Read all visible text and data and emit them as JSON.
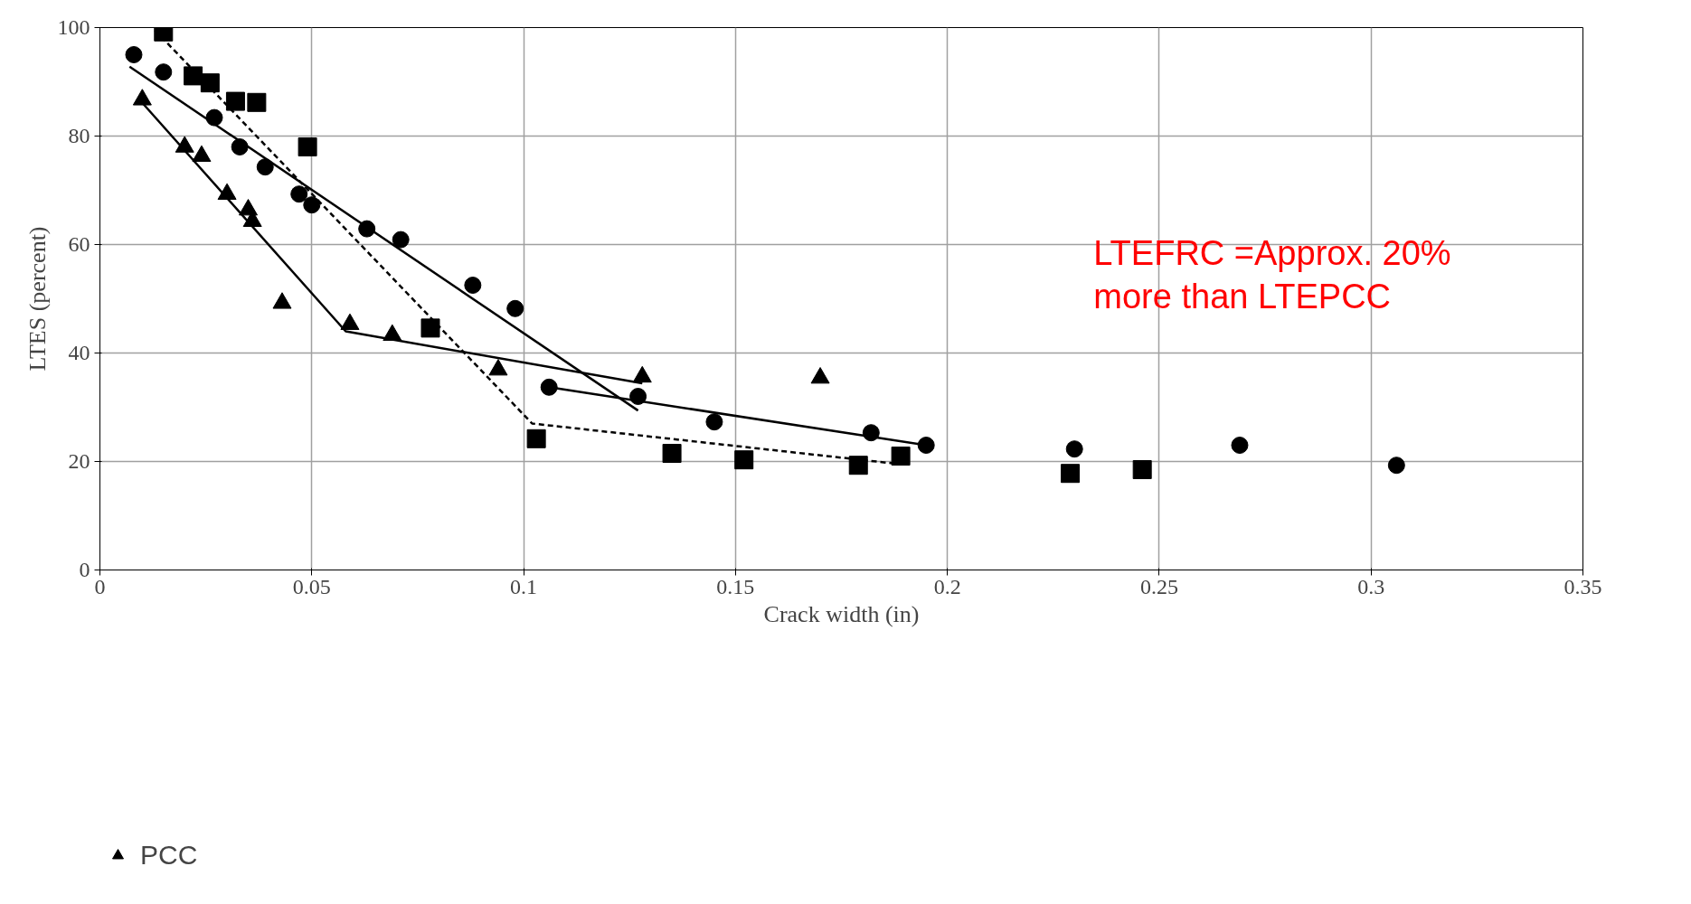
{
  "chart_data": {
    "type": "scatter",
    "xlabel": "Crack width (in)",
    "ylabel": "LTES (percent)",
    "xlim": [
      0,
      0.35
    ],
    "xticks": [
      0,
      0.05,
      0.1,
      0.15,
      0.2,
      0.25,
      0.3,
      0.35
    ],
    "ylim": [
      0,
      100
    ],
    "yticks": [
      0,
      20,
      40,
      60,
      80,
      100
    ],
    "grid": true,
    "legend": "bottom",
    "annotations": [
      "LTEFRC =Approx. 20% more than LTEPCC"
    ],
    "series": [
      {
        "name": "PCC",
        "color": "#000000",
        "marker": "triangle",
        "x": [
          0.01,
          0.02,
          0.024,
          0.03,
          0.035,
          0.036,
          0.043,
          0.059,
          0.069,
          0.094,
          0.128,
          0.17
        ],
        "values": [
          86.7,
          78,
          76.3,
          69.3,
          66.4,
          64.3,
          49.2,
          45.3,
          43.3,
          36.9,
          35.6,
          35.4
        ]
      },
      {
        "color": "#000000",
        "marker": "square",
        "x": [
          0.015,
          0.022,
          0.026,
          0.032,
          0.037,
          0.049,
          0.078,
          0.103,
          0.135,
          0.152,
          0.179,
          0.189,
          0.229,
          0.246
        ],
        "values": [
          99.2,
          91.1,
          89.8,
          86.4,
          86.2,
          78,
          44.6,
          24.2,
          21.5,
          20.3,
          19.3,
          21,
          17.8,
          18.5
        ]
      },
      {
        "color": "#000000",
        "marker": "circle",
        "x": [
          0.008,
          0.015,
          0.027,
          0.033,
          0.039,
          0.047,
          0.05,
          0.063,
          0.071,
          0.088,
          0.098,
          0.106,
          0.127,
          0.145,
          0.182,
          0.195,
          0.23,
          0.269,
          0.306
        ],
        "values": [
          95,
          91.8,
          83.4,
          78,
          74.3,
          69.3,
          67.3,
          62.9,
          60.9,
          52.5,
          48.2,
          33.7,
          32,
          27.3,
          25.3,
          23,
          22.3,
          23,
          19.3
        ]
      },
      {
        "type": "line",
        "color": "#000000",
        "line_style": "solid",
        "x": [
          0.009,
          0.058,
          0.128
        ],
        "values": [
          87,
          44,
          34.4
        ]
      },
      {
        "type": "line",
        "color": "#000000",
        "line_style": "dashed",
        "x": [
          0.013,
          0.102,
          0.189
        ],
        "values": [
          99.5,
          27,
          19.5
        ]
      },
      {
        "type": "line",
        "color": "#000000",
        "line_style": "solid",
        "x": [
          0.007,
          0.127
        ],
        "values": [
          92.8,
          29.4
        ]
      },
      {
        "type": "line",
        "color": "#000000",
        "line_style": "solid",
        "x": [
          0.106,
          0.195
        ],
        "values": [
          33.7,
          23
        ]
      }
    ]
  }
}
